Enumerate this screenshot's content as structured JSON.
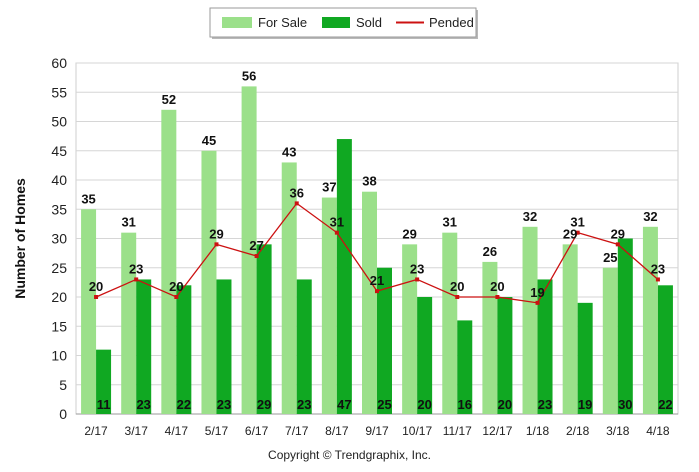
{
  "chart_data": {
    "type": "bar",
    "categories": [
      "2/17",
      "3/17",
      "4/17",
      "5/17",
      "6/17",
      "7/17",
      "8/17",
      "9/17",
      "10/17",
      "11/17",
      "12/17",
      "1/18",
      "2/18",
      "3/18",
      "4/18"
    ],
    "series": [
      {
        "name": "For Sale",
        "type": "bar",
        "color": "#9be08a",
        "values": [
          35,
          31,
          52,
          45,
          56,
          43,
          37,
          38,
          29,
          31,
          26,
          32,
          29,
          25,
          32
        ]
      },
      {
        "name": "Sold",
        "type": "bar",
        "color": "#10a822",
        "values": [
          11,
          23,
          22,
          23,
          29,
          23,
          47,
          25,
          20,
          16,
          20,
          23,
          19,
          30,
          22
        ]
      },
      {
        "name": "Pended",
        "type": "line",
        "color": "#cc1111",
        "values": [
          20,
          23,
          20,
          29,
          27,
          36,
          31,
          21,
          23,
          20,
          20,
          19,
          31,
          29,
          23
        ]
      }
    ],
    "xlabel": "",
    "ylabel": "Number of Homes",
    "ylim": [
      0,
      60
    ],
    "yticks": [
      "0",
      "5",
      "10",
      "15",
      "20",
      "25",
      "30",
      "35",
      "40",
      "45",
      "50",
      "55",
      "60"
    ],
    "grid": true,
    "legend_position": "top-center"
  },
  "footer": {
    "copyright": "Copyright © Trendgraphix, Inc."
  }
}
